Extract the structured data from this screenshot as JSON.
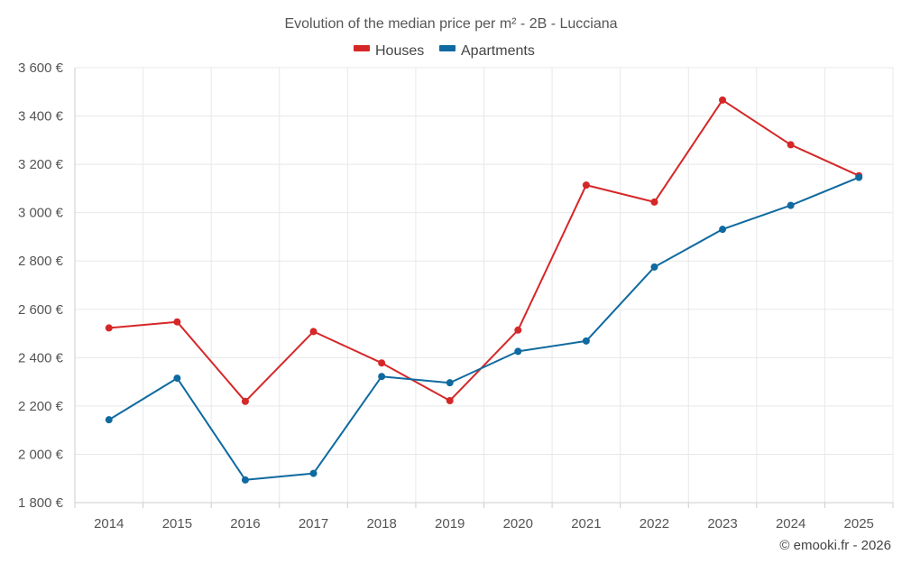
{
  "chart_data": {
    "type": "line",
    "title": "Evolution of the median price per m² - 2B - Lucciana",
    "categories": [
      "2014",
      "2015",
      "2016",
      "2017",
      "2018",
      "2019",
      "2020",
      "2021",
      "2022",
      "2023",
      "2024",
      "2025"
    ],
    "series": [
      {
        "name": "Houses",
        "color": "#d62728",
        "values": [
          2523,
          2548,
          2219,
          2508,
          2378,
          2222,
          2514,
          3114,
          3044,
          3466,
          3281,
          3153
        ]
      },
      {
        "name": "Apartments",
        "color": "#0f6aa0",
        "values": [
          2143,
          2315,
          1894,
          1921,
          2322,
          2296,
          2426,
          2469,
          2775,
          2931,
          3030,
          3146
        ]
      }
    ],
    "ylim": [
      1800,
      3600
    ],
    "yticks": [
      1800,
      2000,
      2200,
      2400,
      2600,
      2800,
      3000,
      3200,
      3400,
      3600
    ],
    "ytick_labels": [
      "1 800 €",
      "2 000 €",
      "2 200 €",
      "2 400 €",
      "2 600 €",
      "2 800 €",
      "3 000 €",
      "3 200 €",
      "3 400 €",
      "3 600 €"
    ],
    "xlabel": "",
    "ylabel": "",
    "grid": true,
    "legend_position": "top-center"
  },
  "credit": "© emooki.fr - 2026"
}
